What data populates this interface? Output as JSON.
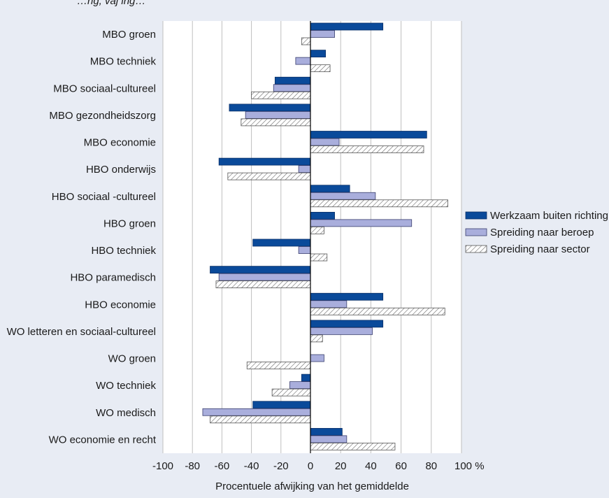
{
  "header_fragment": "…ng, vaj ing…",
  "colors": {
    "background": "#e8ecf4",
    "plot_background": "#ffffff",
    "gridline": "#bfbfbf",
    "series_1": "#0a4a9a",
    "series_2": "#a9aedc",
    "series_3_hatch": "#6a6a6a"
  },
  "chart_data": {
    "type": "bar",
    "orientation": "horizontal",
    "categories": [
      "MBO groen",
      "MBO techniek",
      "MBO sociaal-cultureel",
      "MBO gezondheidszorg",
      "MBO economie",
      "HBO onderwijs",
      "HBO sociaal -cultureel",
      "HBO groen",
      "HBO techniek",
      "HBO paramedisch",
      "HBO economie",
      "WO letteren en sociaal-cultureel",
      "WO groen",
      "WO techniek",
      "WO medisch",
      "WO economie en recht"
    ],
    "series": [
      {
        "name": "Werkzaam buiten richting",
        "values": [
          48,
          10,
          -24,
          -55,
          77,
          -62,
          26,
          16,
          -39,
          -68,
          48,
          48,
          0,
          -6,
          -39,
          21
        ]
      },
      {
        "name": "Spreiding naar beroep",
        "values": [
          16,
          -10,
          -25,
          -44,
          19,
          -8,
          43,
          67,
          -8,
          -62,
          24,
          41,
          9,
          -14,
          -73,
          24
        ]
      },
      {
        "name": "Spreiding naar sector",
        "values": [
          -6,
          13,
          -40,
          -47,
          75,
          -56,
          91,
          9,
          11,
          -64,
          89,
          8,
          -43,
          -26,
          -68,
          56
        ]
      }
    ],
    "x_ticks": [
      "-100",
      "-80",
      "-60",
      "-40",
      "-20",
      "0",
      "20",
      "40",
      "60",
      "80",
      "100 %"
    ],
    "xlim": [
      -100,
      100
    ],
    "xlabel": "Procentuele afwijking van het gemiddelde",
    "ylabel": "",
    "title": "",
    "grid": true,
    "legend_position": "right"
  }
}
